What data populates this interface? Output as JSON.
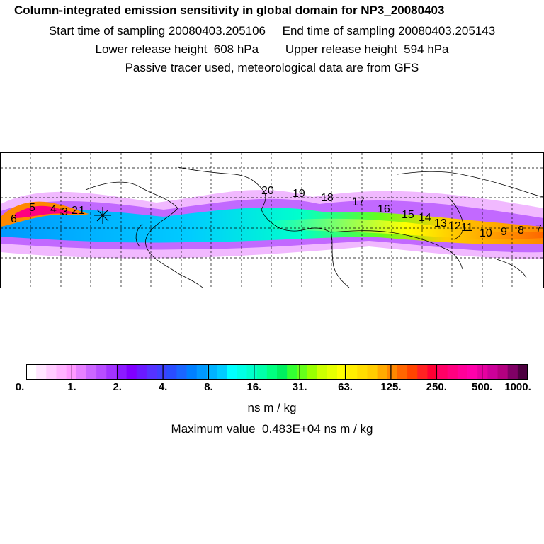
{
  "header": {
    "title": "Column-integrated emission sensitivity in global domain for NP3_20080403",
    "sampling": "Start time of sampling 20080403.205106     End time of sampling 20080403.205143",
    "release": "Lower release height  608 hPa        Upper release height  594 hPa",
    "info": "Passive tracer used, meteorological data are from GFS"
  },
  "map": {
    "day_labels": [
      "6",
      "5",
      "4",
      "3",
      "2",
      "1",
      "20",
      "19",
      "18",
      "17",
      "16",
      "15",
      "14",
      "13",
      "12",
      "11",
      "10",
      "9",
      "8",
      "7"
    ],
    "release_marker": "release-point-star"
  },
  "colorbar": {
    "colors": [
      "#ffffff",
      "#ffe6ff",
      "#ffccff",
      "#ffb3ff",
      "#ff99ff",
      "#e680ff",
      "#cc66ff",
      "#b84dff",
      "#a333ff",
      "#8c1aff",
      "#8000ff",
      "#6a1aff",
      "#5533ff",
      "#4040ff",
      "#2a4dff",
      "#1a66ff",
      "#0080ff",
      "#0099ff",
      "#00b3ff",
      "#00ccff",
      "#00ffff",
      "#00ffe6",
      "#00ffcc",
      "#00ffaa",
      "#00ff80",
      "#00f060",
      "#33ff33",
      "#66ff1a",
      "#99ff00",
      "#ccff00",
      "#e6ff00",
      "#ffff00",
      "#ffee00",
      "#ffdd00",
      "#ffcc00",
      "#ffaa00",
      "#ff8800",
      "#ff6600",
      "#ff4400",
      "#ff2222",
      "#ff0033",
      "#ff0066",
      "#ff0080",
      "#ff0099",
      "#ff00aa",
      "#e600a0",
      "#cc0099",
      "#b30080",
      "#800066",
      "#4d0040"
    ],
    "tick_labels": [
      "0.",
      "1.",
      "2.",
      "4.",
      "8.",
      "16.",
      "31.",
      "63.",
      "125.",
      "250.",
      "500.",
      "1000."
    ],
    "unit": "ns m / kg"
  },
  "footer": {
    "max_value": "Maximum value  0.483E+04 ns m / kg"
  }
}
